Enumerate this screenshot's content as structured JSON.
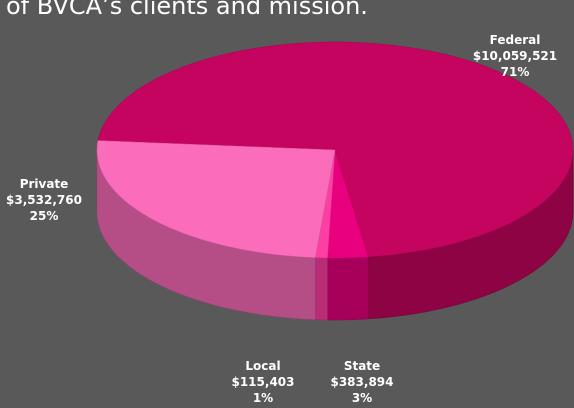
{
  "chart_data": {
    "type": "pie3d",
    "title": "of BVCA’s clients and mission.",
    "categories": [
      "Federal",
      "State",
      "Local",
      "Private"
    ],
    "values": [
      10059521,
      383894,
      115403,
      3532760
    ],
    "value_labels": [
      "$10,059,521",
      "$383,894",
      "$115,403",
      "$3,532,760"
    ],
    "percents": [
      71,
      3,
      1,
      25
    ],
    "percent_labels": [
      "71%",
      "3%",
      "1%",
      "25%"
    ],
    "colors": [
      "#c4045e",
      "#e8007e",
      "#ff3ea4",
      "#fb6dba"
    ]
  }
}
